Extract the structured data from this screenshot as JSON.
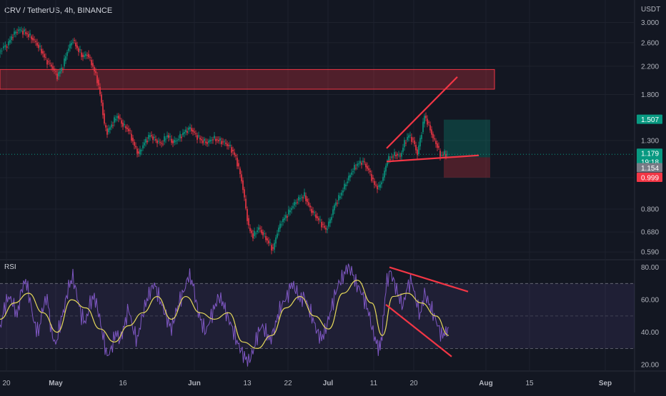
{
  "header": {
    "title": "CRV / TetherUS, 4h, BINANCE"
  },
  "chart_data": {
    "type": "line",
    "title": "CRV / TetherUS, 4h, BINANCE",
    "currency": "USDT",
    "price_axis": {
      "scale": "log",
      "ticks": [
        "3.000",
        "2.600",
        "2.200",
        "1.800",
        "1.300",
        "0.999",
        "0.800",
        "0.680",
        "0.590"
      ]
    },
    "time_axis": {
      "labels": [
        "20",
        "May",
        "16",
        "Jun",
        "13",
        "22",
        "Jul",
        "11",
        "20",
        "Aug",
        "15",
        "Sep"
      ]
    },
    "price_labels": [
      {
        "value": "1.507",
        "color": "#089981",
        "role": "target"
      },
      {
        "value": "1.179",
        "color": "#089981",
        "role": "last"
      },
      {
        "value": "19:18",
        "color": "#089981",
        "role": "countdown"
      },
      {
        "value": "1.154",
        "color": "#787b86",
        "role": "entry"
      },
      {
        "value": "0.999",
        "color": "#f23645",
        "role": "stop"
      }
    ],
    "price_series": [
      [
        0,
        2.4
      ],
      [
        5,
        2.5
      ],
      [
        12,
        2.55
      ],
      [
        20,
        2.75
      ],
      [
        28,
        2.85
      ],
      [
        36,
        2.8
      ],
      [
        44,
        2.72
      ],
      [
        52,
        2.6
      ],
      [
        60,
        2.45
      ],
      [
        66,
        2.3
      ],
      [
        74,
        2.2
      ],
      [
        82,
        2.05
      ],
      [
        90,
        2.2
      ],
      [
        96,
        2.45
      ],
      [
        104,
        2.65
      ],
      [
        110,
        2.5
      ],
      [
        118,
        2.35
      ],
      [
        124,
        2.4
      ],
      [
        130,
        2.25
      ],
      [
        138,
        2.0
      ],
      [
        144,
        1.7
      ],
      [
        148,
        1.45
      ],
      [
        152,
        1.38
      ],
      [
        158,
        1.45
      ],
      [
        166,
        1.55
      ],
      [
        174,
        1.45
      ],
      [
        182,
        1.4
      ],
      [
        190,
        1.25
      ],
      [
        196,
        1.18
      ],
      [
        204,
        1.28
      ],
      [
        212,
        1.35
      ],
      [
        220,
        1.3
      ],
      [
        228,
        1.27
      ],
      [
        236,
        1.35
      ],
      [
        244,
        1.28
      ],
      [
        252,
        1.32
      ],
      [
        260,
        1.38
      ],
      [
        268,
        1.42
      ],
      [
        276,
        1.35
      ],
      [
        284,
        1.3
      ],
      [
        292,
        1.28
      ],
      [
        300,
        1.32
      ],
      [
        308,
        1.3
      ],
      [
        316,
        1.28
      ],
      [
        324,
        1.24
      ],
      [
        332,
        1.15
      ],
      [
        340,
        0.98
      ],
      [
        346,
        0.8
      ],
      [
        350,
        0.7
      ],
      [
        356,
        0.66
      ],
      [
        364,
        0.7
      ],
      [
        372,
        0.66
      ],
      [
        378,
        0.63
      ],
      [
        384,
        0.6
      ],
      [
        390,
        0.68
      ],
      [
        396,
        0.73
      ],
      [
        404,
        0.77
      ],
      [
        412,
        0.82
      ],
      [
        420,
        0.86
      ],
      [
        428,
        0.88
      ],
      [
        436,
        0.8
      ],
      [
        444,
        0.76
      ],
      [
        452,
        0.72
      ],
      [
        458,
        0.69
      ],
      [
        464,
        0.74
      ],
      [
        470,
        0.82
      ],
      [
        478,
        0.88
      ],
      [
        486,
        0.96
      ],
      [
        494,
        1.04
      ],
      [
        502,
        1.1
      ],
      [
        510,
        1.12
      ],
      [
        518,
        1.05
      ],
      [
        526,
        0.95
      ],
      [
        532,
        0.93
      ],
      [
        538,
        1.0
      ],
      [
        544,
        1.13
      ],
      [
        550,
        1.16
      ],
      [
        556,
        1.18
      ],
      [
        562,
        1.16
      ],
      [
        568,
        1.28
      ],
      [
        574,
        1.35
      ],
      [
        580,
        1.3
      ],
      [
        586,
        1.18
      ],
      [
        592,
        1.38
      ],
      [
        596,
        1.55
      ],
      [
        602,
        1.45
      ],
      [
        608,
        1.32
      ],
      [
        614,
        1.25
      ],
      [
        618,
        1.17
      ],
      [
        624,
        1.18
      ],
      [
        628,
        1.179
      ]
    ],
    "price_ylim": [
      0.57,
      3.1
    ],
    "resistance_zone": {
      "top": 2.15,
      "bottom": 1.87
    },
    "trendlines_price": [
      {
        "from": [
          541,
          1.23
        ],
        "to": [
          640,
          2.04
        ]
      },
      {
        "from": [
          541,
          1.12
        ],
        "to": [
          670,
          1.17
        ]
      }
    ],
    "position": {
      "entry": 1.154,
      "target": 1.507,
      "stop": 0.999,
      "last": 1.179
    },
    "rsi": {
      "label": "RSI",
      "ticks": [
        "80.00",
        "60.00",
        "40.00",
        "20.00"
      ],
      "ylim": [
        17,
        82
      ],
      "band": [
        30,
        70
      ],
      "mid": 50,
      "series": [
        [
          0,
          42
        ],
        [
          6,
          55
        ],
        [
          12,
          62
        ],
        [
          18,
          58
        ],
        [
          24,
          50
        ],
        [
          30,
          66
        ],
        [
          36,
          72
        ],
        [
          42,
          60
        ],
        [
          48,
          45
        ],
        [
          54,
          40
        ],
        [
          60,
          55
        ],
        [
          66,
          62
        ],
        [
          72,
          40
        ],
        [
          78,
          32
        ],
        [
          84,
          45
        ],
        [
          90,
          55
        ],
        [
          96,
          68
        ],
        [
          102,
          74
        ],
        [
          108,
          62
        ],
        [
          114,
          50
        ],
        [
          120,
          46
        ],
        [
          126,
          58
        ],
        [
          132,
          62
        ],
        [
          138,
          52
        ],
        [
          144,
          38
        ],
        [
          150,
          25
        ],
        [
          156,
          30
        ],
        [
          162,
          40
        ],
        [
          168,
          35
        ],
        [
          174,
          44
        ],
        [
          180,
          55
        ],
        [
          186,
          42
        ],
        [
          192,
          35
        ],
        [
          198,
          48
        ],
        [
          204,
          58
        ],
        [
          210,
          65
        ],
        [
          216,
          70
        ],
        [
          222,
          62
        ],
        [
          228,
          55
        ],
        [
          234,
          48
        ],
        [
          240,
          42
        ],
        [
          246,
          52
        ],
        [
          252,
          60
        ],
        [
          258,
          66
        ],
        [
          264,
          75
        ],
        [
          270,
          70
        ],
        [
          276,
          55
        ],
        [
          282,
          46
        ],
        [
          288,
          40
        ],
        [
          294,
          48
        ],
        [
          300,
          55
        ],
        [
          306,
          62
        ],
        [
          312,
          58
        ],
        [
          318,
          50
        ],
        [
          324,
          44
        ],
        [
          330,
          36
        ],
        [
          336,
          30
        ],
        [
          342,
          25
        ],
        [
          348,
          22
        ],
        [
          354,
          28
        ],
        [
          360,
          38
        ],
        [
          366,
          44
        ],
        [
          372,
          40
        ],
        [
          378,
          35
        ],
        [
          384,
          42
        ],
        [
          390,
          52
        ],
        [
          396,
          58
        ],
        [
          402,
          62
        ],
        [
          408,
          70
        ],
        [
          414,
          66
        ],
        [
          420,
          60
        ],
        [
          426,
          62
        ],
        [
          432,
          55
        ],
        [
          438,
          48
        ],
        [
          444,
          40
        ],
        [
          450,
          36
        ],
        [
          456,
          42
        ],
        [
          462,
          52
        ],
        [
          468,
          62
        ],
        [
          474,
          70
        ],
        [
          480,
          74
        ],
        [
          486,
          80
        ],
        [
          492,
          78
        ],
        [
          498,
          70
        ],
        [
          504,
          66
        ],
        [
          510,
          60
        ],
        [
          516,
          52
        ],
        [
          522,
          40
        ],
        [
          528,
          32
        ],
        [
          532,
          30
        ],
        [
          536,
          45
        ],
        [
          540,
          68
        ],
        [
          546,
          78
        ],
        [
          552,
          70
        ],
        [
          558,
          62
        ],
        [
          564,
          56
        ],
        [
          570,
          68
        ],
        [
          576,
          72
        ],
        [
          582,
          60
        ],
        [
          588,
          50
        ],
        [
          594,
          64
        ],
        [
          600,
          58
        ],
        [
          606,
          52
        ],
        [
          612,
          45
        ],
        [
          618,
          38
        ],
        [
          624,
          40
        ],
        [
          628,
          43
        ]
      ],
      "ma_series": [
        [
          0,
          48
        ],
        [
          20,
          58
        ],
        [
          40,
          64
        ],
        [
          60,
          52
        ],
        [
          80,
          40
        ],
        [
          100,
          60
        ],
        [
          120,
          55
        ],
        [
          140,
          42
        ],
        [
          160,
          34
        ],
        [
          180,
          44
        ],
        [
          200,
          52
        ],
        [
          220,
          62
        ],
        [
          240,
          48
        ],
        [
          260,
          62
        ],
        [
          280,
          52
        ],
        [
          300,
          48
        ],
        [
          320,
          52
        ],
        [
          340,
          34
        ],
        [
          360,
          30
        ],
        [
          380,
          38
        ],
        [
          400,
          55
        ],
        [
          420,
          62
        ],
        [
          440,
          50
        ],
        [
          460,
          42
        ],
        [
          480,
          64
        ],
        [
          500,
          72
        ],
        [
          520,
          58
        ],
        [
          535,
          38
        ],
        [
          550,
          62
        ],
        [
          570,
          64
        ],
        [
          590,
          58
        ],
        [
          610,
          50
        ],
        [
          628,
          38
        ]
      ],
      "trendlines": [
        {
          "from": [
            545,
            80
          ],
          "to": [
            655,
            65
          ]
        },
        {
          "from": [
            540,
            57
          ],
          "to": [
            632,
            25
          ]
        }
      ]
    }
  }
}
